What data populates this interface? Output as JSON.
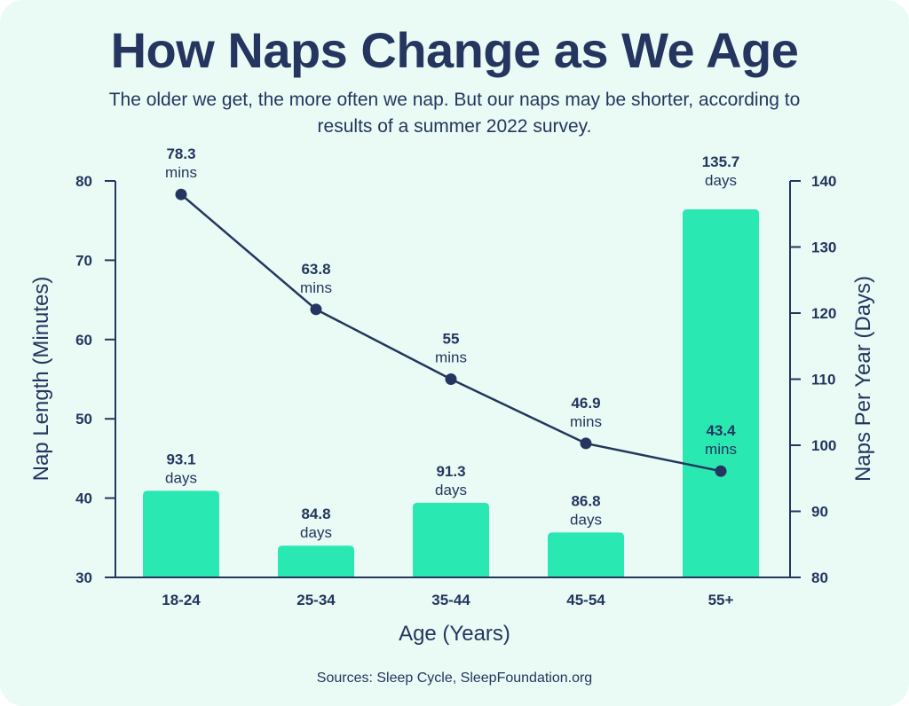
{
  "title": "How Naps Change as We Age",
  "subtitle": "The older we get, the more often we nap. But our naps may be shorter, according to results of a summer 2022 survey.",
  "source": "Sources: Sleep Cycle, SleepFoundation.org",
  "colors": {
    "background": "#eafbf5",
    "bar": "#2ae8b2",
    "line": "#24365f",
    "text": "#24365f"
  },
  "chart_data": {
    "type": "bar",
    "categories": [
      "18-24",
      "25-34",
      "35-44",
      "45-54",
      "55+"
    ],
    "series": [
      {
        "name": "Naps Per Year (Days)",
        "type": "bar",
        "axis": "right",
        "values": [
          93.1,
          84.8,
          91.3,
          86.8,
          135.7
        ],
        "unit": "days"
      },
      {
        "name": "Nap Length (Minutes)",
        "type": "line",
        "axis": "left",
        "values": [
          78.3,
          63.8,
          55,
          46.9,
          43.4
        ],
        "unit": "mins"
      }
    ],
    "xlabel": "Age (Years)",
    "ylabel_left": "Nap Length (Minutes)",
    "ylabel_right": "Naps Per Year (Days)",
    "ylim_left": [
      30,
      80
    ],
    "ylim_right": [
      80,
      140
    ],
    "yticks_left": [
      30,
      40,
      50,
      60,
      70,
      80
    ],
    "yticks_right": [
      80,
      90,
      100,
      110,
      120,
      130,
      140
    ],
    "grid": false
  }
}
